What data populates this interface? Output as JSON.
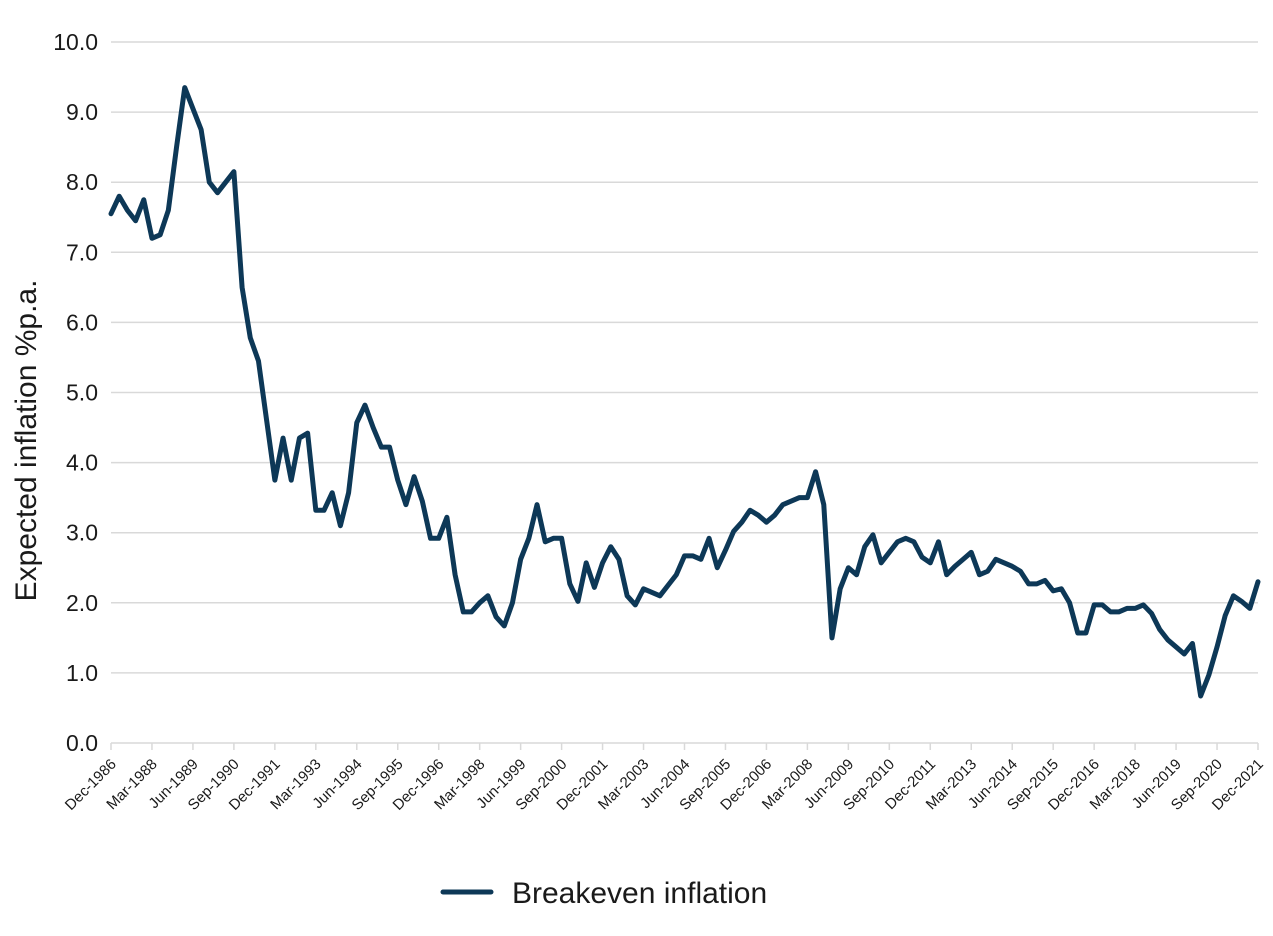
{
  "chart_data": {
    "type": "line",
    "title": "",
    "xlabel": "",
    "ylabel": "Expected inflation %p.a.",
    "ylim": [
      0,
      10
    ],
    "y_ticks": [
      "0.0",
      "1.0",
      "2.0",
      "3.0",
      "4.0",
      "5.0",
      "6.0",
      "7.0",
      "8.0",
      "9.0",
      "10.0"
    ],
    "x_tick_labels": [
      "Dec-1986",
      "Mar-1988",
      "Jun-1989",
      "Sep-1990",
      "Dec-1991",
      "Mar-1993",
      "Jun-1994",
      "Sep-1995",
      "Dec-1996",
      "Mar-1998",
      "Jun-1999",
      "Sep-2000",
      "Dec-2001",
      "Mar-2003",
      "Jun-2004",
      "Sep-2005",
      "Dec-2006",
      "Mar-2008",
      "Jun-2009",
      "Sep-2010",
      "Dec-2011",
      "Mar-2013",
      "Jun-2014",
      "Sep-2015",
      "Dec-2016",
      "Mar-2018",
      "Jun-2019",
      "Sep-2020",
      "Dec-2021"
    ],
    "x_start_quarter_label": "Dec-1986",
    "x_end_quarter_label": "Dec-2021",
    "grid": true,
    "legend_position": "bottom",
    "series": [
      {
        "name": "Breakeven inflation",
        "color": "#0d3857",
        "values": [
          7.55,
          7.8,
          7.6,
          7.45,
          7.75,
          7.2,
          7.25,
          7.6,
          8.5,
          9.35,
          9.05,
          8.75,
          8.0,
          7.85,
          8.0,
          8.15,
          6.5,
          5.78,
          5.45,
          4.6,
          3.75,
          4.35,
          3.75,
          4.35,
          4.42,
          3.32,
          3.32,
          3.57,
          3.1,
          3.57,
          4.57,
          4.82,
          4.5,
          4.22,
          4.22,
          3.75,
          3.4,
          3.8,
          3.45,
          2.92,
          2.92,
          3.22,
          2.4,
          1.87,
          1.87,
          2.0,
          2.1,
          1.8,
          1.67,
          2.0,
          2.62,
          2.92,
          3.4,
          2.87,
          2.92,
          2.92,
          2.27,
          2.02,
          2.57,
          2.22,
          2.57,
          2.8,
          2.62,
          2.1,
          1.97,
          2.2,
          2.15,
          2.1,
          2.25,
          2.4,
          2.67,
          2.67,
          2.62,
          2.92,
          2.5,
          2.75,
          3.02,
          3.15,
          3.32,
          3.25,
          3.15,
          3.25,
          3.4,
          3.45,
          3.5,
          3.5,
          3.87,
          3.4,
          1.5,
          2.2,
          2.5,
          2.4,
          2.8,
          2.97,
          2.57,
          2.72,
          2.87,
          2.92,
          2.87,
          2.65,
          2.57,
          2.87,
          2.4,
          2.52,
          2.62,
          2.72,
          2.4,
          2.45,
          2.62,
          2.57,
          2.52,
          2.45,
          2.27,
          2.27,
          2.32,
          2.17,
          2.2,
          2.0,
          1.57,
          1.57,
          1.97,
          1.97,
          1.87,
          1.87,
          1.92,
          1.92,
          1.97,
          1.85,
          1.62,
          1.47,
          1.37,
          1.27,
          1.42,
          0.67,
          0.97,
          1.37,
          1.82,
          2.1,
          2.02,
          1.92,
          2.3
        ]
      }
    ]
  }
}
